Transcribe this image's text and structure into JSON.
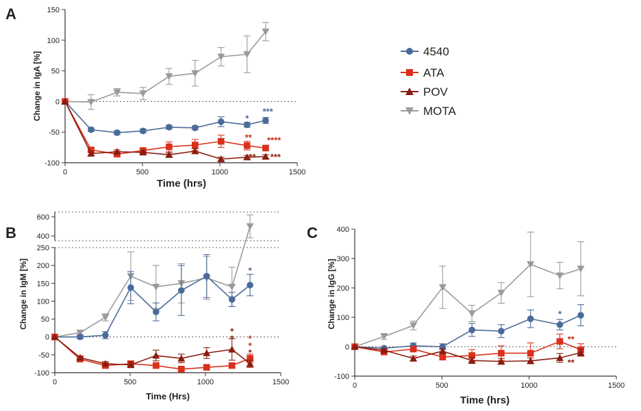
{
  "colors": {
    "4540": "#4a6b9a",
    "ATA": "#d9301c",
    "POV": "#8a1c10",
    "MOTA": "#9a9a9a",
    "sig_blue": "#4a6b9a",
    "sig_red": "#c0311b",
    "sig_darkred": "#8a1c10"
  },
  "legend": [
    {
      "series": "4540",
      "label": "4540",
      "marker": "circle-icon"
    },
    {
      "series": "ATA",
      "label": "ATA",
      "marker": "square-icon"
    },
    {
      "series": "POV",
      "label": "POV",
      "marker": "triangle-up-icon"
    },
    {
      "series": "MOTA",
      "label": "MOTA",
      "marker": "triangle-down-icon"
    }
  ],
  "chart_data": [
    {
      "id": "A",
      "panel_label": "A",
      "type": "line",
      "title": "",
      "xlabel": "Time (hrs)",
      "ylabel": "Change in IgA [%]",
      "xlim": [
        0,
        1500
      ],
      "ylim": [
        -100,
        150
      ],
      "xticks": [
        "0",
        "500",
        "1000",
        "1500"
      ],
      "yticks": [
        "-100",
        "-50",
        "0",
        "50",
        "100",
        "150"
      ],
      "x": [
        0,
        168,
        336,
        504,
        672,
        840,
        1008,
        1176,
        1296
      ],
      "series": [
        {
          "name": "MOTA",
          "values": [
            0,
            -1,
            15,
            13,
            41,
            46,
            73,
            77,
            114
          ],
          "errors": [
            0,
            12,
            6,
            10,
            13,
            21,
            15,
            30,
            15
          ]
        },
        {
          "name": "4540",
          "values": [
            0,
            -46,
            -51,
            -48,
            -42,
            -43,
            -33,
            -38,
            -31
          ],
          "errors": [
            0,
            3,
            3,
            3,
            3,
            3,
            8,
            4,
            5
          ]
        },
        {
          "name": "ATA",
          "values": [
            0,
            -79,
            -86,
            -80,
            -74,
            -71,
            -65,
            -72,
            -76
          ],
          "errors": [
            0,
            4,
            4,
            4,
            8,
            9,
            10,
            7,
            4
          ]
        },
        {
          "name": "POV",
          "values": [
            0,
            -85,
            -82,
            -83,
            -87,
            -81,
            -94,
            -91,
            -90
          ],
          "errors": [
            0,
            3,
            3,
            3,
            3,
            4,
            3,
            3,
            3
          ]
        }
      ],
      "annotations": [
        {
          "text": "*",
          "series": "4540",
          "x": 1176,
          "y": -28
        },
        {
          "text": "***",
          "series": "4540",
          "x": 1310,
          "y": -17
        },
        {
          "text": "**",
          "series": "ATA",
          "x": 1185,
          "y": -59
        },
        {
          "text": "****",
          "series": "ATA",
          "x": 1350,
          "y": -64
        },
        {
          "text": "**",
          "series": "POV",
          "x": 1210,
          "y": -91
        },
        {
          "text": "***",
          "series": "POV",
          "x": 1360,
          "y": -91
        }
      ]
    },
    {
      "id": "B",
      "panel_label": "B",
      "type": "line",
      "title": "",
      "xlabel": "Time  (Hrs)",
      "ylabel": "Change  in  IgM [%]",
      "xlim": [
        0,
        1500
      ],
      "ylim": [
        -100,
        250
      ],
      "ylim_upper_segment": [
        350,
        650
      ],
      "xticks": [
        "0",
        "500",
        "1000",
        "1500"
      ],
      "yticks": [
        "-100",
        "-50",
        "0",
        "50",
        "100",
        "150",
        "200",
        "250"
      ],
      "yticks_upper": [
        "400",
        "600"
      ],
      "x": [
        0,
        168,
        336,
        504,
        672,
        840,
        1008,
        1176,
        1296
      ],
      "series": [
        {
          "name": "MOTA",
          "values": [
            0,
            12,
            55,
            170,
            140,
            150,
            165,
            140,
            500
          ],
          "errors": [
            0,
            5,
            10,
            68,
            60,
            55,
            60,
            55,
            120
          ]
        },
        {
          "name": "4540",
          "values": [
            0,
            0,
            5,
            138,
            70,
            130,
            170,
            105,
            145
          ],
          "errors": [
            0,
            5,
            10,
            45,
            25,
            70,
            60,
            20,
            30
          ]
        },
        {
          "name": "ATA",
          "values": [
            0,
            -62,
            -80,
            -75,
            -80,
            -90,
            -85,
            -80,
            -60
          ],
          "errors": [
            0,
            6,
            6,
            8,
            5,
            5,
            5,
            5,
            12
          ]
        },
        {
          "name": "POV",
          "values": [
            0,
            -58,
            -75,
            -78,
            -52,
            -60,
            -45,
            -35,
            -75
          ],
          "errors": [
            0,
            5,
            6,
            8,
            15,
            12,
            15,
            30,
            10
          ]
        }
      ],
      "annotations": [
        {
          "text": "*",
          "series": "4540",
          "x": 1296,
          "y": 185
        },
        {
          "text": "*",
          "series": "POV",
          "x": 1176,
          "y": 15
        },
        {
          "text": "*",
          "series": "POV",
          "x": 1176,
          "y": -5
        },
        {
          "text": "*",
          "series": "ATA",
          "x": 1296,
          "y": -5
        },
        {
          "text": "*",
          "series": "ATA",
          "x": 1296,
          "y": -25
        },
        {
          "text": "*",
          "series": "POV",
          "x": 1296,
          "y": -45
        }
      ]
    },
    {
      "id": "C",
      "panel_label": "C",
      "type": "line",
      "title": "",
      "xlabel": "Time (hrs)",
      "ylabel": "Change in  IgG [%]",
      "xlim": [
        0,
        1500
      ],
      "ylim": [
        -100,
        400
      ],
      "xticks": [
        "0",
        "500",
        "1000",
        "1500"
      ],
      "yticks": [
        "-100",
        "0",
        "100",
        "200",
        "300",
        "400"
      ],
      "x": [
        0,
        168,
        336,
        504,
        672,
        840,
        1008,
        1176,
        1296
      ],
      "series": [
        {
          "name": "MOTA",
          "values": [
            0,
            35,
            72,
            202,
            113,
            183,
            280,
            242,
            265
          ],
          "errors": [
            0,
            10,
            15,
            72,
            28,
            35,
            110,
            45,
            92
          ]
        },
        {
          "name": "4540",
          "values": [
            0,
            -5,
            3,
            0,
            57,
            53,
            95,
            75,
            107
          ],
          "errors": [
            0,
            5,
            10,
            10,
            22,
            22,
            30,
            18,
            36
          ]
        },
        {
          "name": "ATA",
          "values": [
            0,
            -18,
            -8,
            -35,
            -30,
            -22,
            -22,
            18,
            -10
          ],
          "errors": [
            0,
            5,
            8,
            10,
            20,
            25,
            35,
            25,
            20
          ]
        },
        {
          "name": "POV",
          "values": [
            0,
            -12,
            -40,
            -15,
            -47,
            -50,
            -48,
            -38,
            -20
          ],
          "errors": [
            0,
            5,
            8,
            8,
            10,
            10,
            10,
            15,
            12
          ]
        }
      ],
      "annotations": [
        {
          "text": "*",
          "series": "4540",
          "x": 1176,
          "y": 110
        },
        {
          "text": "**",
          "series": "ATA",
          "x": 1240,
          "y": 25
        },
        {
          "text": "**",
          "series": "POV",
          "x": 1240,
          "y": -55
        }
      ]
    }
  ]
}
